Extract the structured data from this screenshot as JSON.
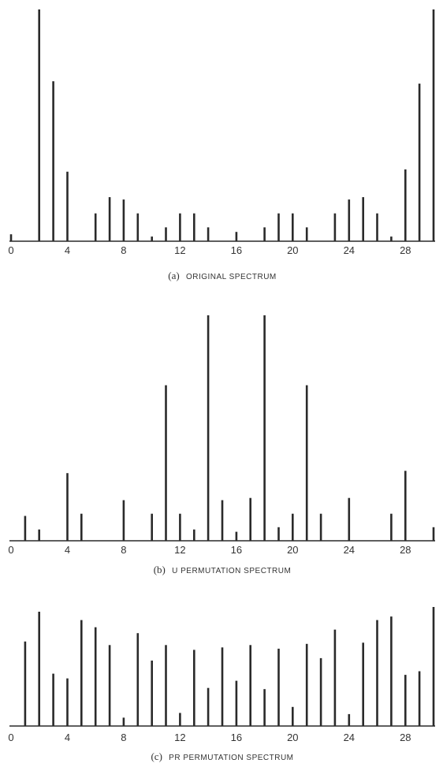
{
  "chart_data": [
    {
      "type": "bar",
      "caption_prefix": "(a)",
      "caption_title": "ORIGINAL SPECTRUM",
      "x": [
        0,
        1,
        2,
        3,
        4,
        5,
        6,
        7,
        8,
        9,
        10,
        11,
        12,
        13,
        14,
        15,
        16,
        17,
        18,
        19,
        20,
        21,
        22,
        23,
        24,
        25,
        26,
        27,
        28,
        29,
        30
      ],
      "values": [
        3,
        0,
        100,
        69,
        30,
        0,
        12,
        19,
        18,
        12,
        2,
        6,
        12,
        12,
        6,
        0,
        4,
        0,
        6,
        12,
        12,
        6,
        0,
        12,
        18,
        19,
        12,
        2,
        31,
        68,
        100
      ],
      "xticks": [
        0,
        4,
        8,
        12,
        16,
        20,
        24,
        28
      ],
      "xlim": [
        0,
        30
      ],
      "ylim": [
        0,
        100
      ]
    },
    {
      "type": "bar",
      "caption_prefix": "(b)",
      "caption_title": "U PERMUTATION SPECTRUM",
      "x": [
        0,
        1,
        2,
        3,
        4,
        5,
        6,
        7,
        8,
        9,
        10,
        11,
        12,
        13,
        14,
        15,
        16,
        17,
        18,
        19,
        20,
        21,
        22,
        23,
        24,
        25,
        26,
        27,
        28,
        29,
        30
      ],
      "values": [
        0,
        11,
        5,
        0,
        30,
        12,
        0,
        0,
        18,
        0,
        12,
        69,
        12,
        5,
        100,
        18,
        4,
        19,
        100,
        6,
        12,
        69,
        12,
        0,
        19,
        0,
        0,
        12,
        31,
        0,
        6
      ],
      "xticks": [
        0,
        4,
        8,
        12,
        16,
        20,
        24,
        28
      ],
      "xlim": [
        0,
        30
      ],
      "ylim": [
        0,
        100
      ]
    },
    {
      "type": "bar",
      "caption_prefix": "(c)",
      "caption_title": "PR PERMUTATION SPECTRUM",
      "x": [
        0,
        1,
        2,
        3,
        4,
        5,
        6,
        7,
        8,
        9,
        10,
        11,
        12,
        13,
        14,
        15,
        16,
        17,
        18,
        19,
        20,
        21,
        22,
        23,
        24,
        25,
        26,
        27,
        28,
        29,
        30
      ],
      "values": [
        0,
        71,
        96,
        44,
        40,
        89,
        83,
        68,
        7,
        78,
        55,
        68,
        11,
        64,
        32,
        66,
        38,
        68,
        31,
        65,
        16,
        69,
        57,
        81,
        10,
        70,
        89,
        92,
        43,
        46,
        100
      ],
      "xticks": [
        0,
        4,
        8,
        12,
        16,
        20,
        24,
        28
      ],
      "xlim": [
        0,
        30
      ],
      "ylim": [
        0,
        100
      ]
    }
  ]
}
